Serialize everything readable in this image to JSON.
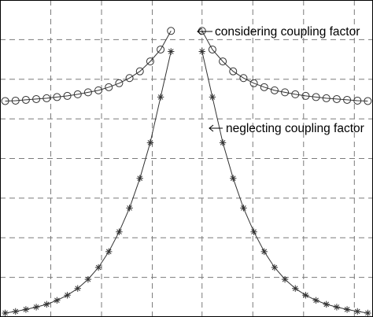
{
  "chart_data": {
    "type": "line",
    "title": "",
    "xlabel": "",
    "ylabel": "",
    "grid": true,
    "xlim": [
      -18,
      18
    ],
    "ylim": [
      0,
      8
    ],
    "series": [
      {
        "key": "considering",
        "marker": "circle",
        "color": "#333333",
        "points": [
          [
            -17.5,
            5.45
          ],
          [
            -16.5,
            5.46
          ],
          [
            -15.5,
            5.48
          ],
          [
            -14.5,
            5.5
          ],
          [
            -13.5,
            5.52
          ],
          [
            -12.5,
            5.55
          ],
          [
            -11.5,
            5.58
          ],
          [
            -10.5,
            5.62
          ],
          [
            -9.5,
            5.67
          ],
          [
            -8.5,
            5.72
          ],
          [
            -7.5,
            5.8
          ],
          [
            -6.5,
            5.9
          ],
          [
            -5.5,
            6.03
          ],
          [
            -4.5,
            6.2
          ],
          [
            -3.5,
            6.45
          ],
          [
            -2.5,
            6.75
          ],
          [
            -1.5,
            7.22
          ],
          [
            1.5,
            7.22
          ],
          [
            2.5,
            6.75
          ],
          [
            3.5,
            6.45
          ],
          [
            4.5,
            6.2
          ],
          [
            5.5,
            6.03
          ],
          [
            6.5,
            5.9
          ],
          [
            7.5,
            5.8
          ],
          [
            8.5,
            5.72
          ],
          [
            9.5,
            5.67
          ],
          [
            10.5,
            5.62
          ],
          [
            11.5,
            5.58
          ],
          [
            12.5,
            5.55
          ],
          [
            13.5,
            5.52
          ],
          [
            14.5,
            5.5
          ],
          [
            15.5,
            5.48
          ],
          [
            16.5,
            5.46
          ],
          [
            17.5,
            5.45
          ]
        ]
      },
      {
        "key": "neglecting",
        "marker": "star",
        "color": "#333333",
        "points": [
          [
            -17.5,
            0.1
          ],
          [
            -16.5,
            0.14
          ],
          [
            -15.5,
            0.19
          ],
          [
            -14.5,
            0.25
          ],
          [
            -13.5,
            0.32
          ],
          [
            -12.5,
            0.42
          ],
          [
            -11.5,
            0.55
          ],
          [
            -10.5,
            0.72
          ],
          [
            -9.5,
            0.95
          ],
          [
            -8.5,
            1.25
          ],
          [
            -7.5,
            1.65
          ],
          [
            -6.5,
            2.15
          ],
          [
            -5.5,
            2.75
          ],
          [
            -4.5,
            3.5
          ],
          [
            -3.5,
            4.4
          ],
          [
            -2.5,
            5.55
          ],
          [
            -1.5,
            6.7
          ],
          [
            1.5,
            6.7
          ],
          [
            2.5,
            5.55
          ],
          [
            3.5,
            4.4
          ],
          [
            4.5,
            3.5
          ],
          [
            5.5,
            2.75
          ],
          [
            6.5,
            2.15
          ],
          [
            7.5,
            1.65
          ],
          [
            8.5,
            1.25
          ],
          [
            9.5,
            0.95
          ],
          [
            10.5,
            0.72
          ],
          [
            11.5,
            0.55
          ],
          [
            12.5,
            0.42
          ],
          [
            13.5,
            0.32
          ],
          [
            14.5,
            0.25
          ],
          [
            15.5,
            0.19
          ],
          [
            16.5,
            0.14
          ],
          [
            17.5,
            0.1
          ]
        ]
      }
    ],
    "annotations": [
      {
        "key": "considering",
        "text": "considering coupling factor",
        "arrow": "left"
      },
      {
        "key": "neglecting",
        "text": "neglecting coupling factor",
        "arrow": "left"
      }
    ]
  }
}
